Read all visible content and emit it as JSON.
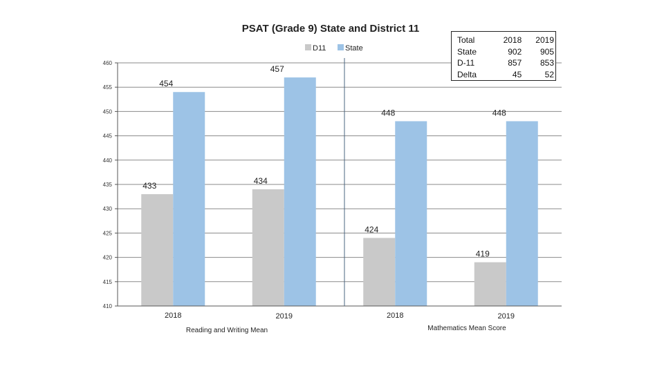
{
  "chart_data": {
    "type": "bar",
    "title": "PSAT (Grade 9) State and District 11",
    "groups": [
      {
        "label": "Reading  and Writing Mean",
        "categories": [
          "2018",
          "2019"
        ]
      },
      {
        "label": "Mathematics Mean Score",
        "categories": [
          "2018",
          "2019"
        ]
      }
    ],
    "categories": [
      "2018",
      "2019",
      "2018",
      "2019"
    ],
    "series": [
      {
        "name": "D11",
        "color": "#c9c9c9",
        "values": [
          433,
          434,
          424,
          419
        ]
      },
      {
        "name": "State",
        "color": "#9dc3e6",
        "values": [
          454,
          457,
          448,
          448
        ]
      }
    ],
    "ylim": [
      410,
      460
    ],
    "yticks": [
      "410",
      "415",
      "420",
      "425",
      "430",
      "435",
      "440",
      "445",
      "450",
      "455",
      "460"
    ],
    "grid": true,
    "legend_position": "top-center"
  },
  "table": {
    "header": [
      "Total",
      "2018",
      "2019"
    ],
    "rows": [
      [
        "State",
        "902",
        "905"
      ],
      [
        "D-11",
        "857",
        "853"
      ],
      [
        "Delta",
        "45",
        "52"
      ]
    ]
  }
}
